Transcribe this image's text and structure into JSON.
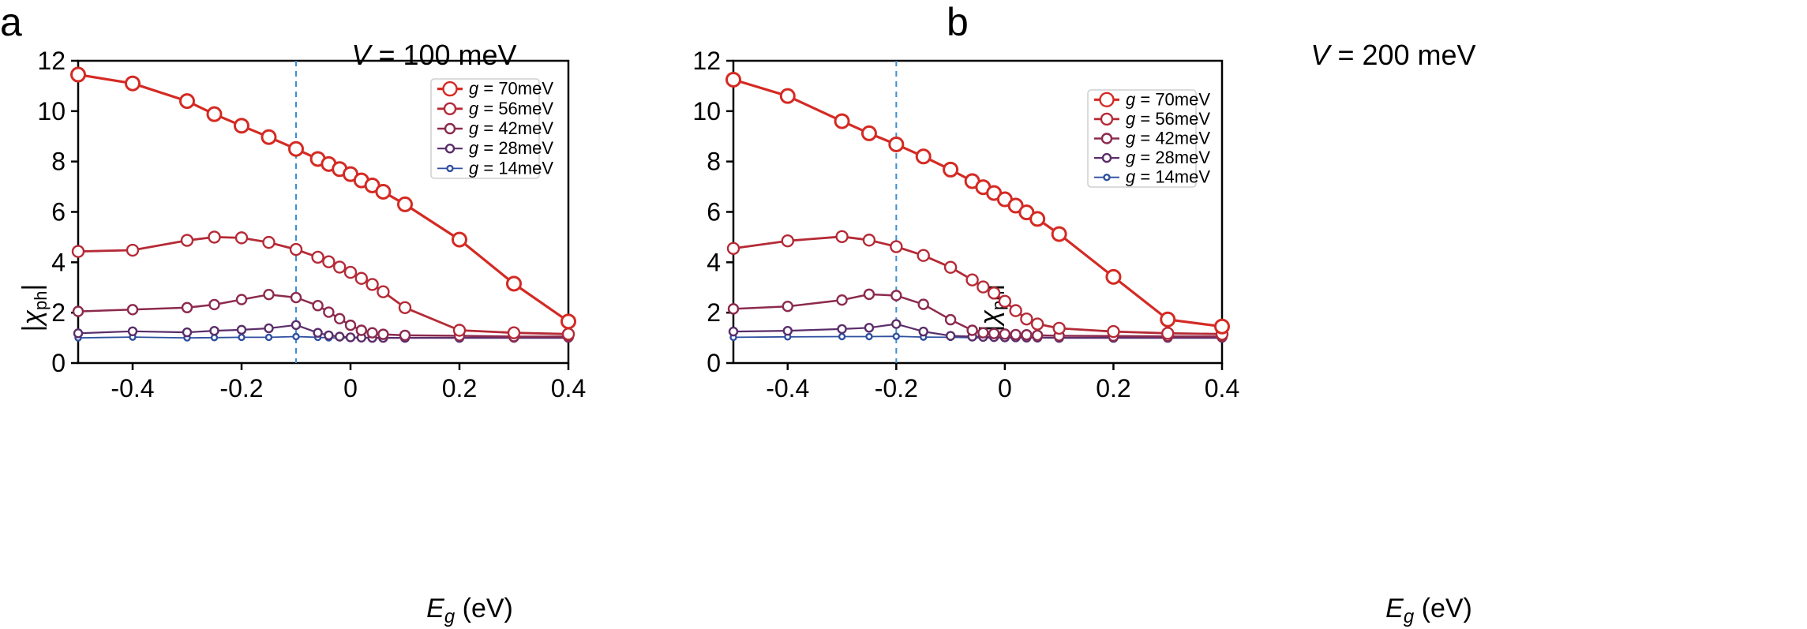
{
  "chart_data": [
    {
      "panel": "a",
      "type": "line",
      "title_var": "V",
      "title_value": " = 100 meV",
      "xlabel_var": "E",
      "xlabel_sub": "g",
      "xlabel_unit": " (eV)",
      "ylabel_var": "χ",
      "ylabel_sub": "ph",
      "xlim": [
        -0.5,
        0.4
      ],
      "ylim": [
        0,
        12
      ],
      "xticks": [
        -0.4,
        -0.2,
        0,
        0.2,
        0.4
      ],
      "xtick_labels": [
        "-0.4",
        "-0.2",
        "0",
        "0.2",
        "0.4"
      ],
      "yticks": [
        0,
        2,
        4,
        6,
        8,
        10,
        12
      ],
      "ytick_labels": [
        "0",
        "2",
        "4",
        "6",
        "8",
        "10",
        "12"
      ],
      "vline_x": -0.1,
      "legend_position": "top-right",
      "x": [
        -0.5,
        -0.4,
        -0.3,
        -0.25,
        -0.2,
        -0.15,
        -0.1,
        -0.06,
        -0.04,
        -0.02,
        0,
        0.02,
        0.04,
        0.06,
        0.1,
        0.2,
        0.3,
        0.4
      ],
      "series": [
        {
          "name": "g = 70meV",
          "g_prefix": "g",
          "g_suffix": " = 70meV",
          "color": "#d42a23",
          "values": [
            11.45,
            11.1,
            10.4,
            9.88,
            9.42,
            8.97,
            8.5,
            8.1,
            7.9,
            7.7,
            7.5,
            7.25,
            7.05,
            6.8,
            6.3,
            4.9,
            3.15,
            1.65
          ]
        },
        {
          "name": "g = 56meV",
          "g_prefix": "g",
          "g_suffix": " = 56meV",
          "color": "#b52a36",
          "values": [
            4.43,
            4.48,
            4.87,
            5.0,
            4.97,
            4.79,
            4.51,
            4.2,
            4.02,
            3.81,
            3.6,
            3.36,
            3.12,
            2.83,
            2.2,
            1.3,
            1.2,
            1.15
          ]
        },
        {
          "name": "g = 42meV",
          "g_prefix": "g",
          "g_suffix": " = 42meV",
          "color": "#8c2a4e",
          "values": [
            2.05,
            2.12,
            2.2,
            2.32,
            2.52,
            2.72,
            2.6,
            2.28,
            2.02,
            1.76,
            1.5,
            1.3,
            1.2,
            1.14,
            1.1,
            1.08,
            1.05,
            1.05
          ]
        },
        {
          "name": "g = 28meV",
          "g_prefix": "g",
          "g_suffix": " = 28meV",
          "color": "#5a2d6a",
          "values": [
            1.18,
            1.26,
            1.22,
            1.28,
            1.32,
            1.38,
            1.51,
            1.2,
            1.1,
            1.05,
            1.02,
            1.01,
            1.0,
            1.0,
            1.0,
            1.0,
            1.0,
            1.0
          ]
        },
        {
          "name": "g = 14meV",
          "g_prefix": "g",
          "g_suffix": " = 14meV",
          "color": "#2e4fa0",
          "values": [
            1.0,
            1.03,
            1.0,
            1.01,
            1.02,
            1.02,
            1.05,
            1.02,
            1.0,
            1.0,
            1.0,
            1.0,
            1.0,
            1.0,
            1.0,
            1.0,
            1.0,
            1.0
          ]
        }
      ]
    },
    {
      "panel": "b",
      "type": "line",
      "title_var": "V",
      "title_value": " = 200 meV",
      "xlabel_var": "E",
      "xlabel_sub": "g",
      "xlabel_unit": " (eV)",
      "ylabel_var": "χ",
      "ylabel_sub": "ph",
      "xlim": [
        -0.5,
        0.4
      ],
      "ylim": [
        0,
        12
      ],
      "xticks": [
        -0.4,
        -0.2,
        0,
        0.2,
        0.4
      ],
      "xtick_labels": [
        "-0.4",
        "-0.2",
        "0",
        "0.2",
        "0.4"
      ],
      "yticks": [
        0,
        2,
        4,
        6,
        8,
        10,
        12
      ],
      "ytick_labels": [
        "0",
        "2",
        "4",
        "6",
        "8",
        "10",
        "12"
      ],
      "vline_x": -0.2,
      "legend_position": "top-right",
      "x": [
        -0.5,
        -0.4,
        -0.3,
        -0.25,
        -0.2,
        -0.15,
        -0.1,
        -0.06,
        -0.04,
        -0.02,
        0,
        0.02,
        0.04,
        0.06,
        0.1,
        0.2,
        0.3,
        0.4
      ],
      "series": [
        {
          "name": "g = 70meV",
          "g_prefix": "g",
          "g_suffix": " = 70meV",
          "color": "#d42a23",
          "values": [
            11.25,
            10.6,
            9.6,
            9.12,
            8.68,
            8.2,
            7.68,
            7.22,
            6.98,
            6.75,
            6.5,
            6.25,
            5.98,
            5.72,
            5.12,
            3.42,
            1.73,
            1.45
          ]
        },
        {
          "name": "g = 56meV",
          "g_prefix": "g",
          "g_suffix": " = 56meV",
          "color": "#b52a36",
          "values": [
            4.55,
            4.85,
            5.02,
            4.88,
            4.62,
            4.27,
            3.8,
            3.3,
            3.02,
            2.78,
            2.45,
            2.08,
            1.75,
            1.55,
            1.38,
            1.25,
            1.18,
            1.15
          ]
        },
        {
          "name": "g = 42meV",
          "g_prefix": "g",
          "g_suffix": " = 42meV",
          "color": "#8c2a4e",
          "values": [
            2.15,
            2.25,
            2.5,
            2.73,
            2.68,
            2.33,
            1.72,
            1.3,
            1.2,
            1.17,
            1.15,
            1.13,
            1.12,
            1.1,
            1.08,
            1.07,
            1.06,
            1.05
          ]
        },
        {
          "name": "g = 28meV",
          "g_prefix": "g",
          "g_suffix": " = 28meV",
          "color": "#5a2d6a",
          "values": [
            1.25,
            1.28,
            1.35,
            1.4,
            1.55,
            1.25,
            1.08,
            1.05,
            1.04,
            1.03,
            1.02,
            1.02,
            1.01,
            1.01,
            1.0,
            1.0,
            1.0,
            1.0
          ]
        },
        {
          "name": "g = 14meV",
          "g_prefix": "g",
          "g_suffix": " = 14meV",
          "color": "#2e4fa0",
          "values": [
            1.02,
            1.04,
            1.05,
            1.05,
            1.06,
            1.03,
            1.02,
            1.01,
            1.0,
            1.0,
            1.0,
            1.0,
            1.0,
            1.0,
            1.0,
            1.0,
            1.0,
            1.0
          ]
        }
      ]
    }
  ]
}
